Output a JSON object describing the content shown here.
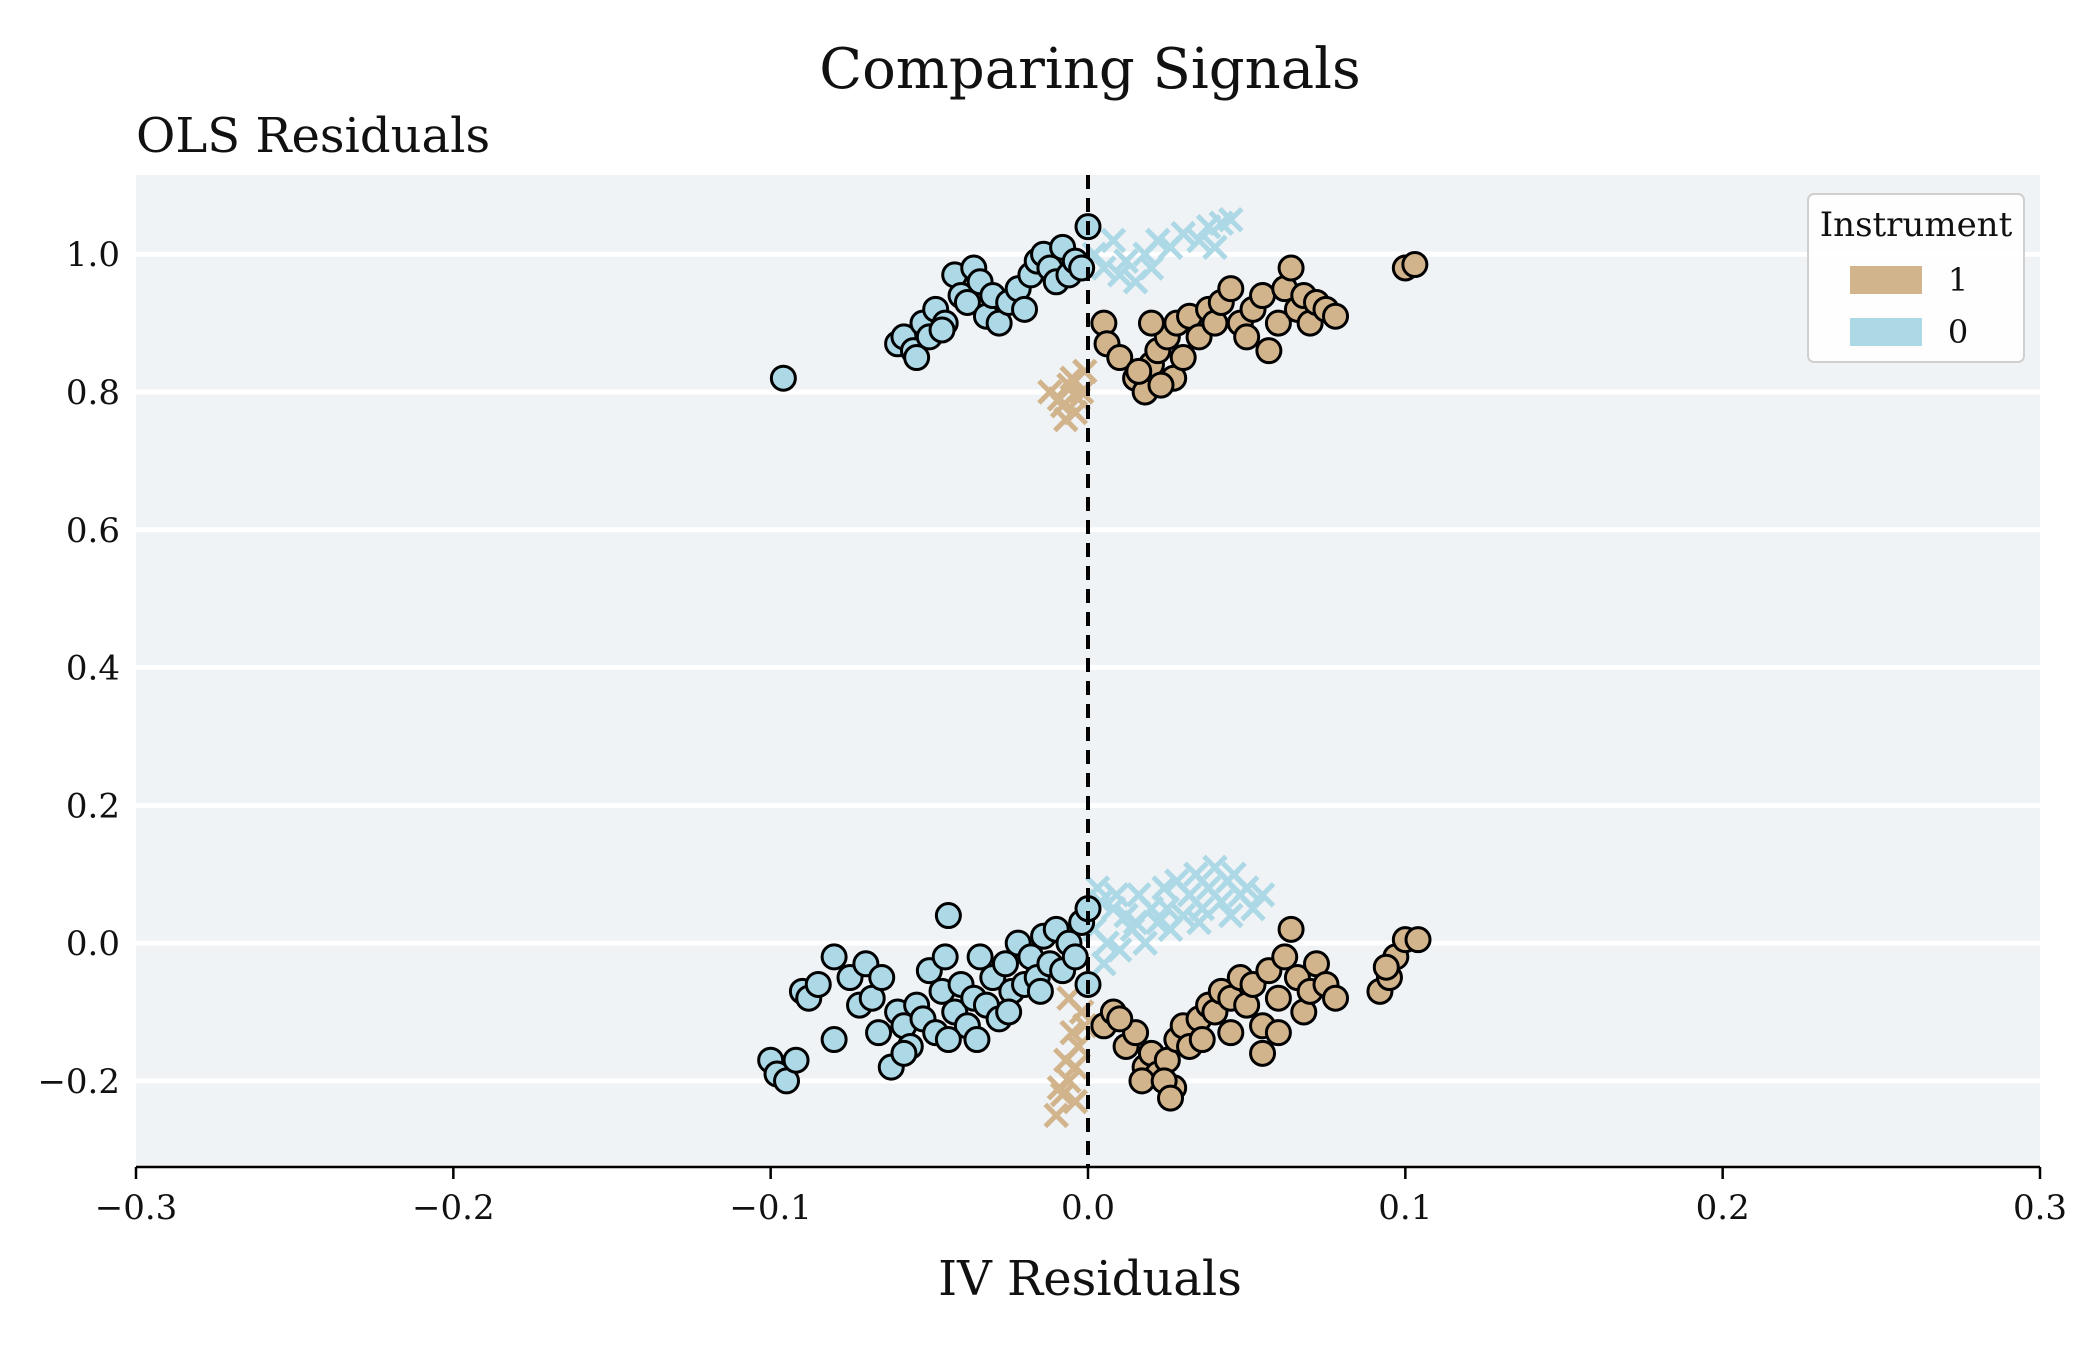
{
  "chart_data": {
    "type": "scatter",
    "title": "Comparing Signals",
    "xlabel": "IV Residuals",
    "ylabel": "OLS Residuals",
    "xlim": [
      -0.3,
      0.3
    ],
    "ylim": [
      -0.325,
      1.115
    ],
    "xticks": [
      -0.3,
      -0.2,
      -0.1,
      0.0,
      0.1,
      0.2,
      0.3
    ],
    "xtick_labels": [
      "−0.3",
      "−0.2",
      "−0.1",
      "0.0",
      "0.1",
      "0.2",
      "0.3"
    ],
    "yticks": [
      -0.2,
      0.0,
      0.2,
      0.4,
      0.6,
      0.8,
      1.0
    ],
    "ytick_labels": [
      "−0.2",
      "0.0",
      "0.2",
      "0.4",
      "0.6",
      "0.8",
      "1.0"
    ],
    "grid": "horizontal",
    "reference_line": {
      "x": 0.0,
      "style": "dashed",
      "color": "#000000"
    },
    "background": "#eff3f6",
    "legend": {
      "title": "Instrument",
      "placement": "top-right",
      "entries": [
        {
          "label": "1",
          "color": "#d2b48c"
        },
        {
          "label": "0",
          "color": "#add8e6"
        }
      ]
    },
    "marker_note": "circles = observed points; crosses = corresponding points under instrument",
    "series": [
      {
        "group": "1",
        "marker": "circle",
        "color": "#d2b48c",
        "points": [
          [
            0.005,
            0.9
          ],
          [
            0.006,
            0.87
          ],
          [
            0.01,
            0.85
          ],
          [
            0.015,
            0.82
          ],
          [
            0.018,
            0.8
          ],
          [
            0.02,
            0.84
          ],
          [
            0.022,
            0.86
          ],
          [
            0.025,
            0.88
          ],
          [
            0.027,
            0.82
          ],
          [
            0.028,
            0.9
          ],
          [
            0.03,
            0.85
          ],
          [
            0.032,
            0.91
          ],
          [
            0.035,
            0.88
          ],
          [
            0.038,
            0.92
          ],
          [
            0.04,
            0.9
          ],
          [
            0.042,
            0.93
          ],
          [
            0.045,
            0.95
          ],
          [
            0.048,
            0.9
          ],
          [
            0.05,
            0.88
          ],
          [
            0.052,
            0.92
          ],
          [
            0.055,
            0.94
          ],
          [
            0.057,
            0.86
          ],
          [
            0.06,
            0.9
          ],
          [
            0.062,
            0.95
          ],
          [
            0.064,
            0.98
          ],
          [
            0.066,
            0.92
          ],
          [
            0.068,
            0.94
          ],
          [
            0.07,
            0.9
          ],
          [
            0.072,
            0.93
          ],
          [
            0.075,
            0.92
          ],
          [
            0.078,
            0.91
          ],
          [
            0.02,
            0.9
          ],
          [
            0.016,
            0.83
          ],
          [
            0.023,
            0.81
          ],
          [
            0.1,
            0.98
          ],
          [
            0.103,
            0.985
          ],
          [
            0.005,
            -0.12
          ],
          [
            0.008,
            -0.1
          ],
          [
            0.012,
            -0.15
          ],
          [
            0.015,
            -0.13
          ],
          [
            0.018,
            -0.18
          ],
          [
            0.02,
            -0.16
          ],
          [
            0.022,
            -0.19
          ],
          [
            0.025,
            -0.17
          ],
          [
            0.027,
            -0.21
          ],
          [
            0.028,
            -0.14
          ],
          [
            0.03,
            -0.12
          ],
          [
            0.032,
            -0.15
          ],
          [
            0.035,
            -0.11
          ],
          [
            0.038,
            -0.09
          ],
          [
            0.04,
            -0.1
          ],
          [
            0.042,
            -0.07
          ],
          [
            0.045,
            -0.08
          ],
          [
            0.048,
            -0.05
          ],
          [
            0.05,
            -0.09
          ],
          [
            0.052,
            -0.06
          ],
          [
            0.055,
            -0.12
          ],
          [
            0.057,
            -0.04
          ],
          [
            0.06,
            -0.08
          ],
          [
            0.062,
            -0.02
          ],
          [
            0.064,
            0.02
          ],
          [
            0.066,
            -0.05
          ],
          [
            0.068,
            -0.1
          ],
          [
            0.07,
            -0.07
          ],
          [
            0.072,
            -0.03
          ],
          [
            0.075,
            -0.06
          ],
          [
            0.078,
            -0.08
          ],
          [
            0.055,
            -0.16
          ],
          [
            0.045,
            -0.13
          ],
          [
            0.01,
            -0.11
          ],
          [
            0.017,
            -0.2
          ],
          [
            0.024,
            -0.2
          ],
          [
            0.026,
            -0.225
          ],
          [
            0.036,
            -0.14
          ],
          [
            0.06,
            -0.13
          ],
          [
            0.092,
            -0.07
          ],
          [
            0.095,
            -0.05
          ],
          [
            0.097,
            -0.02
          ],
          [
            0.1,
            0.005
          ],
          [
            0.104,
            0.005
          ],
          [
            0.094,
            -0.035
          ]
        ]
      },
      {
        "group": "1",
        "marker": "cross",
        "color": "#d2b48c",
        "points": [
          [
            -0.012,
            0.8
          ],
          [
            -0.008,
            0.78
          ],
          [
            -0.005,
            0.82
          ],
          [
            -0.003,
            0.79
          ],
          [
            -0.007,
            0.76
          ],
          [
            -0.002,
            0.8
          ],
          [
            -0.006,
            0.81
          ],
          [
            -0.004,
            0.77
          ],
          [
            -0.009,
            0.79
          ],
          [
            -0.001,
            0.83
          ],
          [
            -0.01,
            -0.25
          ],
          [
            -0.008,
            -0.22
          ],
          [
            -0.006,
            -0.2
          ],
          [
            -0.004,
            -0.18
          ],
          [
            -0.003,
            -0.15
          ],
          [
            -0.007,
            -0.17
          ],
          [
            -0.005,
            -0.13
          ],
          [
            -0.002,
            -0.1
          ],
          [
            -0.009,
            -0.21
          ],
          [
            -0.004,
            -0.23
          ],
          [
            -0.001,
            -0.12
          ],
          [
            -0.006,
            -0.08
          ]
        ]
      },
      {
        "group": "0",
        "marker": "circle",
        "color": "#add8e6",
        "points": [
          [
            -0.06,
            0.87
          ],
          [
            -0.058,
            0.88
          ],
          [
            -0.055,
            0.86
          ],
          [
            -0.052,
            0.9
          ],
          [
            -0.05,
            0.88
          ],
          [
            -0.048,
            0.92
          ],
          [
            -0.045,
            0.9
          ],
          [
            -0.042,
            0.97
          ],
          [
            -0.04,
            0.94
          ],
          [
            -0.038,
            0.93
          ],
          [
            -0.036,
            0.98
          ],
          [
            -0.034,
            0.96
          ],
          [
            -0.032,
            0.91
          ],
          [
            -0.03,
            0.94
          ],
          [
            -0.028,
            0.9
          ],
          [
            -0.025,
            0.93
          ],
          [
            -0.022,
            0.95
          ],
          [
            -0.02,
            0.92
          ],
          [
            -0.018,
            0.97
          ],
          [
            -0.016,
            0.99
          ],
          [
            -0.014,
            1.0
          ],
          [
            -0.012,
            0.98
          ],
          [
            -0.01,
            0.96
          ],
          [
            -0.008,
            1.01
          ],
          [
            -0.006,
            0.97
          ],
          [
            -0.004,
            0.99
          ],
          [
            -0.002,
            0.98
          ],
          [
            0.0,
            1.04
          ],
          [
            -0.054,
            0.85
          ],
          [
            -0.046,
            0.89
          ],
          [
            -0.096,
            0.82
          ],
          [
            -0.1,
            -0.17
          ],
          [
            -0.098,
            -0.19
          ],
          [
            -0.095,
            -0.2
          ],
          [
            -0.092,
            -0.17
          ],
          [
            -0.09,
            -0.07
          ],
          [
            -0.088,
            -0.08
          ],
          [
            -0.085,
            -0.06
          ],
          [
            -0.08,
            -0.14
          ],
          [
            -0.08,
            -0.02
          ],
          [
            -0.075,
            -0.05
          ],
          [
            -0.072,
            -0.09
          ],
          [
            -0.07,
            -0.03
          ],
          [
            -0.068,
            -0.08
          ],
          [
            -0.065,
            -0.05
          ],
          [
            -0.062,
            -0.18
          ],
          [
            -0.06,
            -0.1
          ],
          [
            -0.058,
            -0.12
          ],
          [
            -0.056,
            -0.15
          ],
          [
            -0.054,
            -0.09
          ],
          [
            -0.052,
            -0.11
          ],
          [
            -0.05,
            -0.04
          ],
          [
            -0.048,
            -0.13
          ],
          [
            -0.046,
            -0.07
          ],
          [
            -0.044,
            0.04
          ],
          [
            -0.042,
            -0.1
          ],
          [
            -0.04,
            -0.06
          ],
          [
            -0.038,
            -0.12
          ],
          [
            -0.036,
            -0.08
          ],
          [
            -0.034,
            -0.02
          ],
          [
            -0.032,
            -0.09
          ],
          [
            -0.03,
            -0.05
          ],
          [
            -0.028,
            -0.11
          ],
          [
            -0.026,
            -0.03
          ],
          [
            -0.024,
            -0.07
          ],
          [
            -0.022,
            0.0
          ],
          [
            -0.02,
            -0.06
          ],
          [
            -0.018,
            -0.02
          ],
          [
            -0.016,
            -0.05
          ],
          [
            -0.014,
            0.01
          ],
          [
            -0.012,
            -0.03
          ],
          [
            -0.01,
            0.02
          ],
          [
            -0.008,
            -0.04
          ],
          [
            -0.006,
            0.0
          ],
          [
            -0.004,
            -0.02
          ],
          [
            -0.002,
            0.03
          ],
          [
            0.0,
            0.05
          ],
          [
            -0.066,
            -0.13
          ],
          [
            -0.058,
            -0.16
          ],
          [
            -0.044,
            -0.14
          ],
          [
            -0.035,
            -0.14
          ],
          [
            -0.025,
            -0.1
          ],
          [
            -0.015,
            -0.07
          ],
          [
            0.0,
            -0.06
          ],
          [
            -0.045,
            -0.02
          ]
        ]
      },
      {
        "group": "0",
        "marker": "cross",
        "color": "#add8e6",
        "points": [
          [
            0.002,
            1.0
          ],
          [
            0.005,
            0.98
          ],
          [
            0.008,
            1.02
          ],
          [
            0.01,
            0.97
          ],
          [
            0.012,
            0.99
          ],
          [
            0.015,
            0.96
          ],
          [
            0.018,
            1.0
          ],
          [
            0.02,
            0.98
          ],
          [
            0.022,
            1.02
          ],
          [
            0.026,
            1.01
          ],
          [
            0.03,
            1.03
          ],
          [
            0.035,
            1.02
          ],
          [
            0.038,
            1.04
          ],
          [
            0.04,
            1.01
          ],
          [
            0.042,
            1.045
          ],
          [
            0.045,
            1.05
          ],
          [
            0.002,
            0.02
          ],
          [
            0.004,
            0.06
          ],
          [
            0.006,
            0.0
          ],
          [
            0.008,
            0.05
          ],
          [
            0.01,
            -0.01
          ],
          [
            0.012,
            0.04
          ],
          [
            0.014,
            0.02
          ],
          [
            0.016,
            0.07
          ],
          [
            0.018,
            0.0
          ],
          [
            0.02,
            0.05
          ],
          [
            0.022,
            0.03
          ],
          [
            0.024,
            0.08
          ],
          [
            0.026,
            0.02
          ],
          [
            0.028,
            0.09
          ],
          [
            0.03,
            0.04
          ],
          [
            0.032,
            0.07
          ],
          [
            0.034,
            0.1
          ],
          [
            0.036,
            0.05
          ],
          [
            0.038,
            0.08
          ],
          [
            0.04,
            0.11
          ],
          [
            0.042,
            0.06
          ],
          [
            0.044,
            0.09
          ],
          [
            0.046,
            0.1
          ],
          [
            0.048,
            0.07
          ],
          [
            0.05,
            0.08
          ],
          [
            0.052,
            0.05
          ],
          [
            0.055,
            0.07
          ],
          [
            0.003,
            0.08
          ],
          [
            0.005,
            -0.03
          ],
          [
            0.009,
            0.07
          ],
          [
            0.015,
            0.03
          ],
          [
            0.025,
            0.05
          ],
          [
            0.035,
            0.03
          ],
          [
            0.045,
            0.04
          ]
        ]
      }
    ]
  }
}
